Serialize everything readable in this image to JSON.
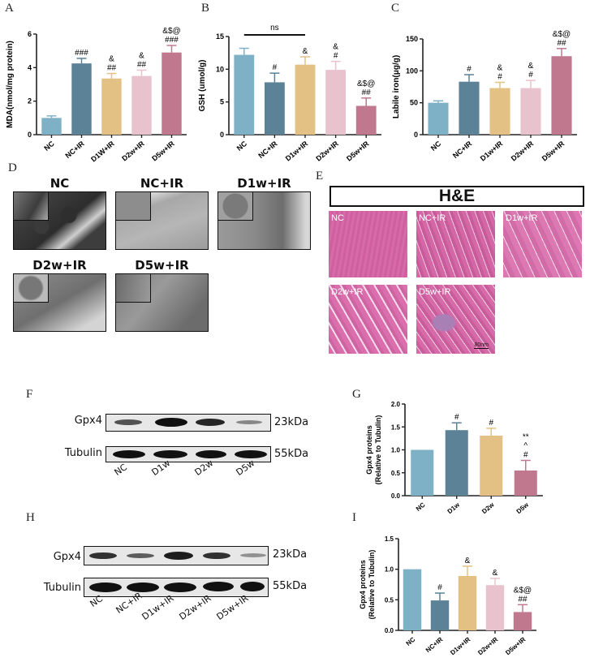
{
  "panel_labels": {
    "A": "A",
    "B": "B",
    "C": "C",
    "D": "D",
    "E": "E",
    "F": "F",
    "G": "G",
    "H": "H",
    "I": "I"
  },
  "colors": {
    "NC": "#7fb1c6",
    "NC+IR": "#5b8296",
    "D1w+IR": "#e3c084",
    "D2w+IR": "#e8c2cd",
    "D5w+IR": "#c0788f"
  },
  "chart_data": [
    {
      "id": "A",
      "type": "bar",
      "title": "",
      "xlabel": "",
      "ylabel": "MDA(nmol/mg protein)",
      "categories": [
        "NC",
        "NC+IR",
        "D1W+IR",
        "D2w+IR",
        "D5w+IR"
      ],
      "values": [
        1.0,
        4.25,
        3.35,
        3.5,
        4.9
      ],
      "errors": [
        0.12,
        0.3,
        0.3,
        0.35,
        0.42
      ],
      "annotations": [
        [
          ""
        ],
        [
          "###"
        ],
        [
          "&",
          "##"
        ],
        [
          "&",
          "##"
        ],
        [
          "&$@",
          "###"
        ]
      ],
      "ylim": [
        0,
        6
      ],
      "yticks": [
        0,
        2,
        4,
        6
      ]
    },
    {
      "id": "B",
      "type": "bar",
      "title": "",
      "xlabel": "",
      "ylabel": "GSH (umol/g)",
      "categories": [
        "NC",
        "NC+IR",
        "D1w+IR",
        "D2w+IR",
        "D5w+IR"
      ],
      "values": [
        12.2,
        8.0,
        10.7,
        9.9,
        4.4
      ],
      "errors": [
        1.0,
        1.4,
        1.2,
        1.3,
        1.2
      ],
      "annotations": [
        [
          ""
        ],
        [
          "#"
        ],
        [
          "&"
        ],
        [
          "&",
          "#"
        ],
        [
          "&$@",
          "##"
        ]
      ],
      "bracket": {
        "from": "NC",
        "to": "D1w+IR",
        "label": "ns"
      },
      "ylim": [
        0,
        15
      ],
      "yticks": [
        0,
        5,
        10,
        15
      ]
    },
    {
      "id": "C",
      "type": "bar",
      "title": "",
      "xlabel": "",
      "ylabel": "Labile iron(μg/g)",
      "categories": [
        "NC",
        "NC+IR",
        "D1w+IR",
        "D2w+IR",
        "D5w+IR"
      ],
      "values": [
        50,
        83,
        73,
        73,
        123
      ],
      "errors": [
        3,
        11,
        9,
        12,
        12
      ],
      "annotations": [
        [
          ""
        ],
        [
          "#"
        ],
        [
          "&",
          "#"
        ],
        [
          "&",
          "#"
        ],
        [
          "&$@",
          "##"
        ]
      ],
      "ylim": [
        0,
        150
      ],
      "yticks": [
        0,
        50,
        100,
        150
      ]
    },
    {
      "id": "G",
      "type": "bar",
      "title": "",
      "xlabel": "",
      "ylabel": "Gpx4 proteins\n(Relative to Tubulin)",
      "categories": [
        "NC",
        "D1w",
        "D2w",
        "D5w"
      ],
      "values": [
        1.0,
        1.43,
        1.31,
        0.55
      ],
      "errors": [
        0,
        0.16,
        0.16,
        0.22
      ],
      "annotations": [
        [
          ""
        ],
        [
          "#"
        ],
        [
          "#"
        ],
        [
          "**",
          "^",
          "#"
        ]
      ],
      "ylim": [
        0,
        2.0
      ],
      "yticks": [
        "0.0",
        "0.5",
        "1.0",
        "1.5",
        "2.0"
      ]
    },
    {
      "id": "I",
      "type": "bar",
      "title": "",
      "xlabel": "",
      "ylabel": "Gpx4 proteins\n(Relative to Tubulin)",
      "categories": [
        "NC",
        "NC+IR",
        "D1w+IR",
        "D2w+IR",
        "D5w+IR"
      ],
      "values": [
        1.0,
        0.49,
        0.89,
        0.74,
        0.3
      ],
      "errors": [
        0,
        0.12,
        0.16,
        0.11,
        0.12
      ],
      "annotations": [
        [
          ""
        ],
        [
          "#"
        ],
        [
          "&"
        ],
        [
          "&"
        ],
        [
          "&$@",
          "##"
        ]
      ],
      "ylim": [
        0,
        1.5
      ],
      "yticks": [
        "0.0",
        "0.5",
        "1.0",
        "1.5"
      ]
    }
  ],
  "panel_d": {
    "images": [
      {
        "title": "NC"
      },
      {
        "title": "NC+IR"
      },
      {
        "title": "D1w+IR"
      },
      {
        "title": "D2w+IR"
      },
      {
        "title": "D5w+IR"
      }
    ]
  },
  "panel_e": {
    "banner": "H&E",
    "images": [
      {
        "label": "NC"
      },
      {
        "label": "NC+IR"
      },
      {
        "label": "D1w+IR"
      },
      {
        "label": "D2w+IR"
      },
      {
        "label": "D5w+IR"
      }
    ],
    "scale_bar": "80nm"
  },
  "panel_f": {
    "rows": [
      {
        "protein": "Gpx4",
        "kda": "23kDa"
      },
      {
        "protein": "Tubulin",
        "kda": "55kDa"
      }
    ],
    "lanes": [
      "NC",
      "D1w",
      "D2w",
      "D5w"
    ]
  },
  "panel_h": {
    "rows": [
      {
        "protein": "Gpx4",
        "kda": "23kDa"
      },
      {
        "protein": "Tubulin",
        "kda": "55kDa"
      }
    ],
    "lanes": [
      "NC",
      "NC+IR",
      "D1w+IR",
      "D2w+IR",
      "D5w+IR"
    ]
  }
}
